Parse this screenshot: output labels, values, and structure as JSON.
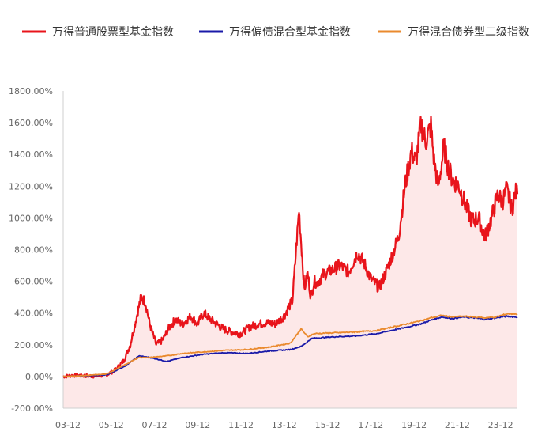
{
  "chart_data": {
    "type": "line",
    "title": "",
    "xlabel": "",
    "ylabel": "",
    "ylim": [
      -200,
      1800
    ],
    "y_ticks": [
      -200,
      0,
      200,
      400,
      600,
      800,
      1000,
      1200,
      1400,
      1600,
      1800
    ],
    "y_tick_labels": [
      "-200.00%",
      "0.00%",
      "200.00%",
      "400.00%",
      "600.00%",
      "800.00%",
      "1000.00%",
      "1200.00%",
      "1400.00%",
      "1600.00%",
      "1800.00%"
    ],
    "x_tick_labels": [
      "03-12",
      "05-12",
      "07-12",
      "09-12",
      "11-12",
      "13-12",
      "15-12",
      "17-12",
      "19-12",
      "21-12",
      "23-12"
    ],
    "x_tick_positions": [
      2004.0,
      2006.0,
      2008.0,
      2010.0,
      2012.0,
      2014.0,
      2016.0,
      2018.0,
      2020.0,
      2022.0,
      2024.0
    ],
    "xlim": [
      2004.0,
      2025.0
    ],
    "grid": false,
    "legend_position": "top",
    "series": [
      {
        "name": "万得普通股票型基金指数",
        "color": "#e8141b",
        "fill": "#fde4e4",
        "x": [
          2004.0,
          2004.5,
          2005.0,
          2005.5,
          2006.0,
          2006.4,
          2006.8,
          2007.1,
          2007.4,
          2007.6,
          2007.8,
          2008.0,
          2008.3,
          2008.6,
          2008.9,
          2009.2,
          2009.5,
          2009.9,
          2010.2,
          2010.5,
          2010.8,
          2011.1,
          2011.4,
          2011.8,
          2012.2,
          2012.6,
          2013.0,
          2013.4,
          2013.8,
          2014.2,
          2014.6,
          2014.9,
          2015.15,
          2015.3,
          2015.45,
          2015.6,
          2015.75,
          2016.0,
          2016.4,
          2016.8,
          2017.2,
          2017.6,
          2017.9,
          2018.2,
          2018.6,
          2018.9,
          2019.2,
          2019.5,
          2019.8,
          2020.1,
          2020.3,
          2020.55,
          2020.75,
          2021.0,
          2021.15,
          2021.35,
          2021.6,
          2021.8,
          2022.0,
          2022.3,
          2022.6,
          2022.9,
          2023.2,
          2023.5,
          2023.8,
          2024.1,
          2024.3,
          2024.5,
          2024.75,
          2024.9,
          2025.0
        ],
        "values": [
          0,
          8,
          5,
          2,
          10,
          40,
          100,
          200,
          380,
          500,
          470,
          330,
          200,
          230,
          310,
          360,
          330,
          380,
          330,
          400,
          360,
          330,
          300,
          280,
          270,
          310,
          330,
          340,
          330,
          380,
          480,
          1050,
          550,
          650,
          500,
          600,
          590,
          640,
          670,
          700,
          660,
          780,
          720,
          620,
          560,
          650,
          760,
          880,
          1200,
          1420,
          1350,
          1590,
          1480,
          1580,
          1350,
          1200,
          1450,
          1320,
          1240,
          1200,
          1080,
          980,
          1000,
          880,
          1000,
          1150,
          1100,
          1180,
          1050,
          1160,
          1150
        ]
      },
      {
        "name": "万得偏债混合型基金指数",
        "color": "#1a1aa8",
        "x": [
          2004.0,
          2005.0,
          2006.0,
          2006.8,
          2007.5,
          2008.0,
          2008.8,
          2009.5,
          2010.5,
          2011.5,
          2012.5,
          2013.5,
          2014.5,
          2015.0,
          2015.5,
          2016.5,
          2017.5,
          2018.5,
          2019.5,
          2020.5,
          2021.0,
          2021.5,
          2022.0,
          2022.5,
          2023.0,
          2023.5,
          2024.0,
          2024.5,
          2025.0
        ],
        "values": [
          0,
          4,
          10,
          60,
          130,
          120,
          95,
          120,
          140,
          150,
          145,
          160,
          170,
          190,
          240,
          250,
          255,
          270,
          300,
          330,
          355,
          375,
          365,
          375,
          370,
          360,
          370,
          380,
          375
        ]
      },
      {
        "name": "万得混合债券型二级指数",
        "color": "#ea8a2e",
        "x": [
          2004.0,
          2005.0,
          2006.0,
          2006.8,
          2007.5,
          2008.0,
          2008.8,
          2009.5,
          2010.5,
          2011.5,
          2012.5,
          2013.5,
          2014.5,
          2015.0,
          2015.3,
          2015.6,
          2016.5,
          2017.5,
          2018.5,
          2019.5,
          2020.5,
          2021.0,
          2021.5,
          2022.0,
          2022.5,
          2023.0,
          2023.5,
          2024.0,
          2024.5,
          2025.0
        ],
        "values": [
          0,
          6,
          15,
          70,
          120,
          120,
          130,
          145,
          155,
          165,
          170,
          185,
          210,
          300,
          250,
          270,
          275,
          280,
          290,
          320,
          350,
          370,
          385,
          375,
          380,
          375,
          370,
          375,
          395,
          395
        ]
      }
    ]
  }
}
